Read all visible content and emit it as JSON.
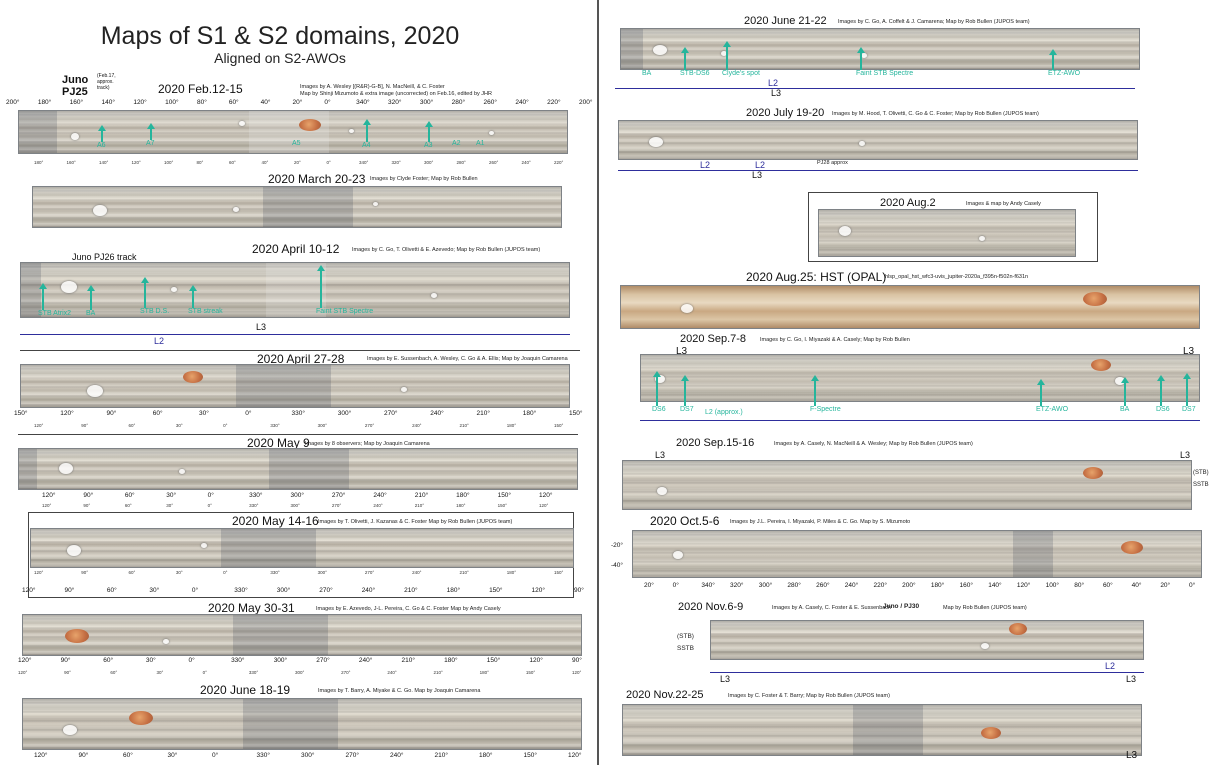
{
  "page": {
    "title": "Maps of S1 & S2 domains, 2020",
    "subtitle": "Aligned on S2-AWOs",
    "juno_label": "Juno",
    "juno_pj": "PJ25",
    "juno_note": "(Feb.17, approx. track)",
    "sections": [
      {
        "title": "2020 Feb.12-15",
        "credit": "Images by A. Wesley [(R&R)-G-B], N. MacNeill, & C. Foster",
        "credit2": "Map by Shinji Mizumoto & extra image (uncorrected) on Feb.16, edited by JHR",
        "ticks": [
          "200°",
          "180°",
          "160°",
          "140°",
          "120°",
          "100°",
          "80°",
          "60°",
          "40°",
          "20°",
          "0°",
          "340°",
          "320°",
          "300°",
          "280°",
          "260°",
          "240°",
          "220°",
          "200°"
        ],
        "labels": [
          "A6",
          "A7",
          "A5",
          "A4",
          "A3",
          "A2",
          "A1"
        ]
      },
      {
        "title": "2020 March 20-23",
        "credit": "Images by Clyde Foster; Map by Rob Bullen"
      },
      {
        "title": "2020 April 10-12",
        "credit": "Images by C. Go, T. Olivetti & E. Azevedo; Map by Rob Bullen (JUPOS team)",
        "track": "Juno PJ26 track",
        "labels": [
          "STB Atrix2",
          "BA",
          "STB D.S.",
          "STB streak",
          "Faint STB Spectre"
        ],
        "l3": "L3",
        "l2": "L2"
      },
      {
        "title": "2020 April 27-28",
        "credit": "Images by E. Sussenbach, A. Wesley, C. Go & A. Ellis; Map by Joaquin Camarena",
        "ticks": [
          "150°",
          "120°",
          "90°",
          "60°",
          "30°",
          "0°",
          "330°",
          "300°",
          "270°",
          "240°",
          "210°",
          "180°",
          "150°"
        ]
      },
      {
        "title": "2020 May 9",
        "credit": "Images by 8 observers; Map by Joaquin Camarena",
        "ticks": [
          "120°",
          "90°",
          "60°",
          "30°",
          "0°",
          "330°",
          "300°",
          "270°",
          "240°",
          "210°",
          "180°",
          "150°",
          "120°"
        ]
      },
      {
        "title": "2020 May 14-16",
        "credit": "Images by T. Olivetti, J. Kazanas & C. Foster  Map by Rob Bullen (JUPOS team)",
        "ticks": [
          "120°",
          "90°",
          "60°",
          "30°",
          "0°",
          "330°",
          "300°",
          "270°",
          "240°",
          "210°",
          "180°",
          "150°",
          "120°",
          "90°"
        ]
      },
      {
        "title": "2020 May 30-31",
        "credit": "Images by E. Azevedo, J-L. Pereira, C. Go & C. Foster  Map by Andy Casely",
        "ticks": [
          "120°",
          "90°",
          "60°",
          "30°",
          "0°",
          "330°",
          "300°",
          "270°",
          "240°",
          "210°",
          "180°",
          "150°",
          "120°",
          "90°"
        ]
      },
      {
        "title": "2020 June 18-19",
        "credit": "Images by T. Barry, A. Miyake & C. Go.  Map by Joaquin Camarena",
        "ticks": [
          "120°",
          "90°",
          "60°",
          "30°",
          "0°",
          "330°",
          "300°",
          "270°",
          "240°",
          "210°",
          "180°",
          "150°",
          "120°"
        ]
      }
    ],
    "right_sections": [
      {
        "title": "2020 June 21-22",
        "credit": "Images by C. Go, A. Coffelt & J. Camarena; Map by Rob Bullen (JUPOS team)",
        "labels": [
          "BA",
          "STB-DS6",
          "Clyde's spot",
          "Faint STB Spectre",
          "ETZ-AWO"
        ],
        "l2": "L2",
        "l3": "L3"
      },
      {
        "title": "2020 July 19-20",
        "credit": "Images by M. Hood, T. Olivetti, C. Go & C. Foster;  Map by Rob Bullen (JUPOS team)",
        "l2": "L2",
        "l3": "L3",
        "pj": "PJ28 approx"
      },
      {
        "title": "2020 Aug.2",
        "credit": "Images & map by Andy Casely"
      },
      {
        "title": "2020 Aug.25:  HST (OPAL)",
        "credit": "hlsp_opal_hst_wfc3-uvis_jupiter-2020a_f395n-f502n-f631n"
      },
      {
        "title": "2020 Sep.7-8",
        "credit": "Images by C. Go, I. Miyazaki & A. Casely;  Map by Rob Bullen",
        "labels": [
          "DS6",
          "DS7",
          "L2 (approx.)",
          "F-Spectre",
          "ETZ-AWO",
          "BA",
          "DS6",
          "DS7"
        ],
        "l3": "L3"
      },
      {
        "title": "2020 Sep.15-16",
        "credit": "Images by A. Casely, N. MacNeill & A. Wesley;  Map by Rob Bullen (JUPOS team)",
        "l3": "L3",
        "side": "(STB)",
        "side2": "SSTB"
      },
      {
        "title": "2020 Oct.5-6",
        "credit": "Images by J.L. Pereira, I. Miyazaki, P. Miles & C. Go.  Map by S. Mizumoto",
        "lat": [
          "-20°",
          "-40°"
        ],
        "ticks": [
          "20°",
          "0°",
          "340°",
          "320°",
          "300°",
          "280°",
          "260°",
          "240°",
          "220°",
          "200°",
          "180°",
          "160°",
          "140°",
          "120°",
          "100°",
          "80°",
          "60°",
          "40°",
          "20°",
          "0°"
        ]
      },
      {
        "title": "2020 Nov.6-9",
        "credit": "Images by A. Casely, C. Foster & E. Sussenbach",
        "juno": "Juno / PJ30",
        "credit2": "Map by Rob Bullen (JUPOS team)",
        "side": "(STB)",
        "side2": "SSTB",
        "l2": "L2",
        "l3": "L3"
      },
      {
        "title": "2020 Nov.22-25",
        "credit": "Images by C. Foster & T. Barry;  Map by Rob Bullen (JUPOS team)",
        "l3": "L3"
      }
    ]
  },
  "colors": {
    "label_green": "#25b59c",
    "longitude_blue": "#2e2e9c",
    "red_spot": "#c56f43"
  }
}
